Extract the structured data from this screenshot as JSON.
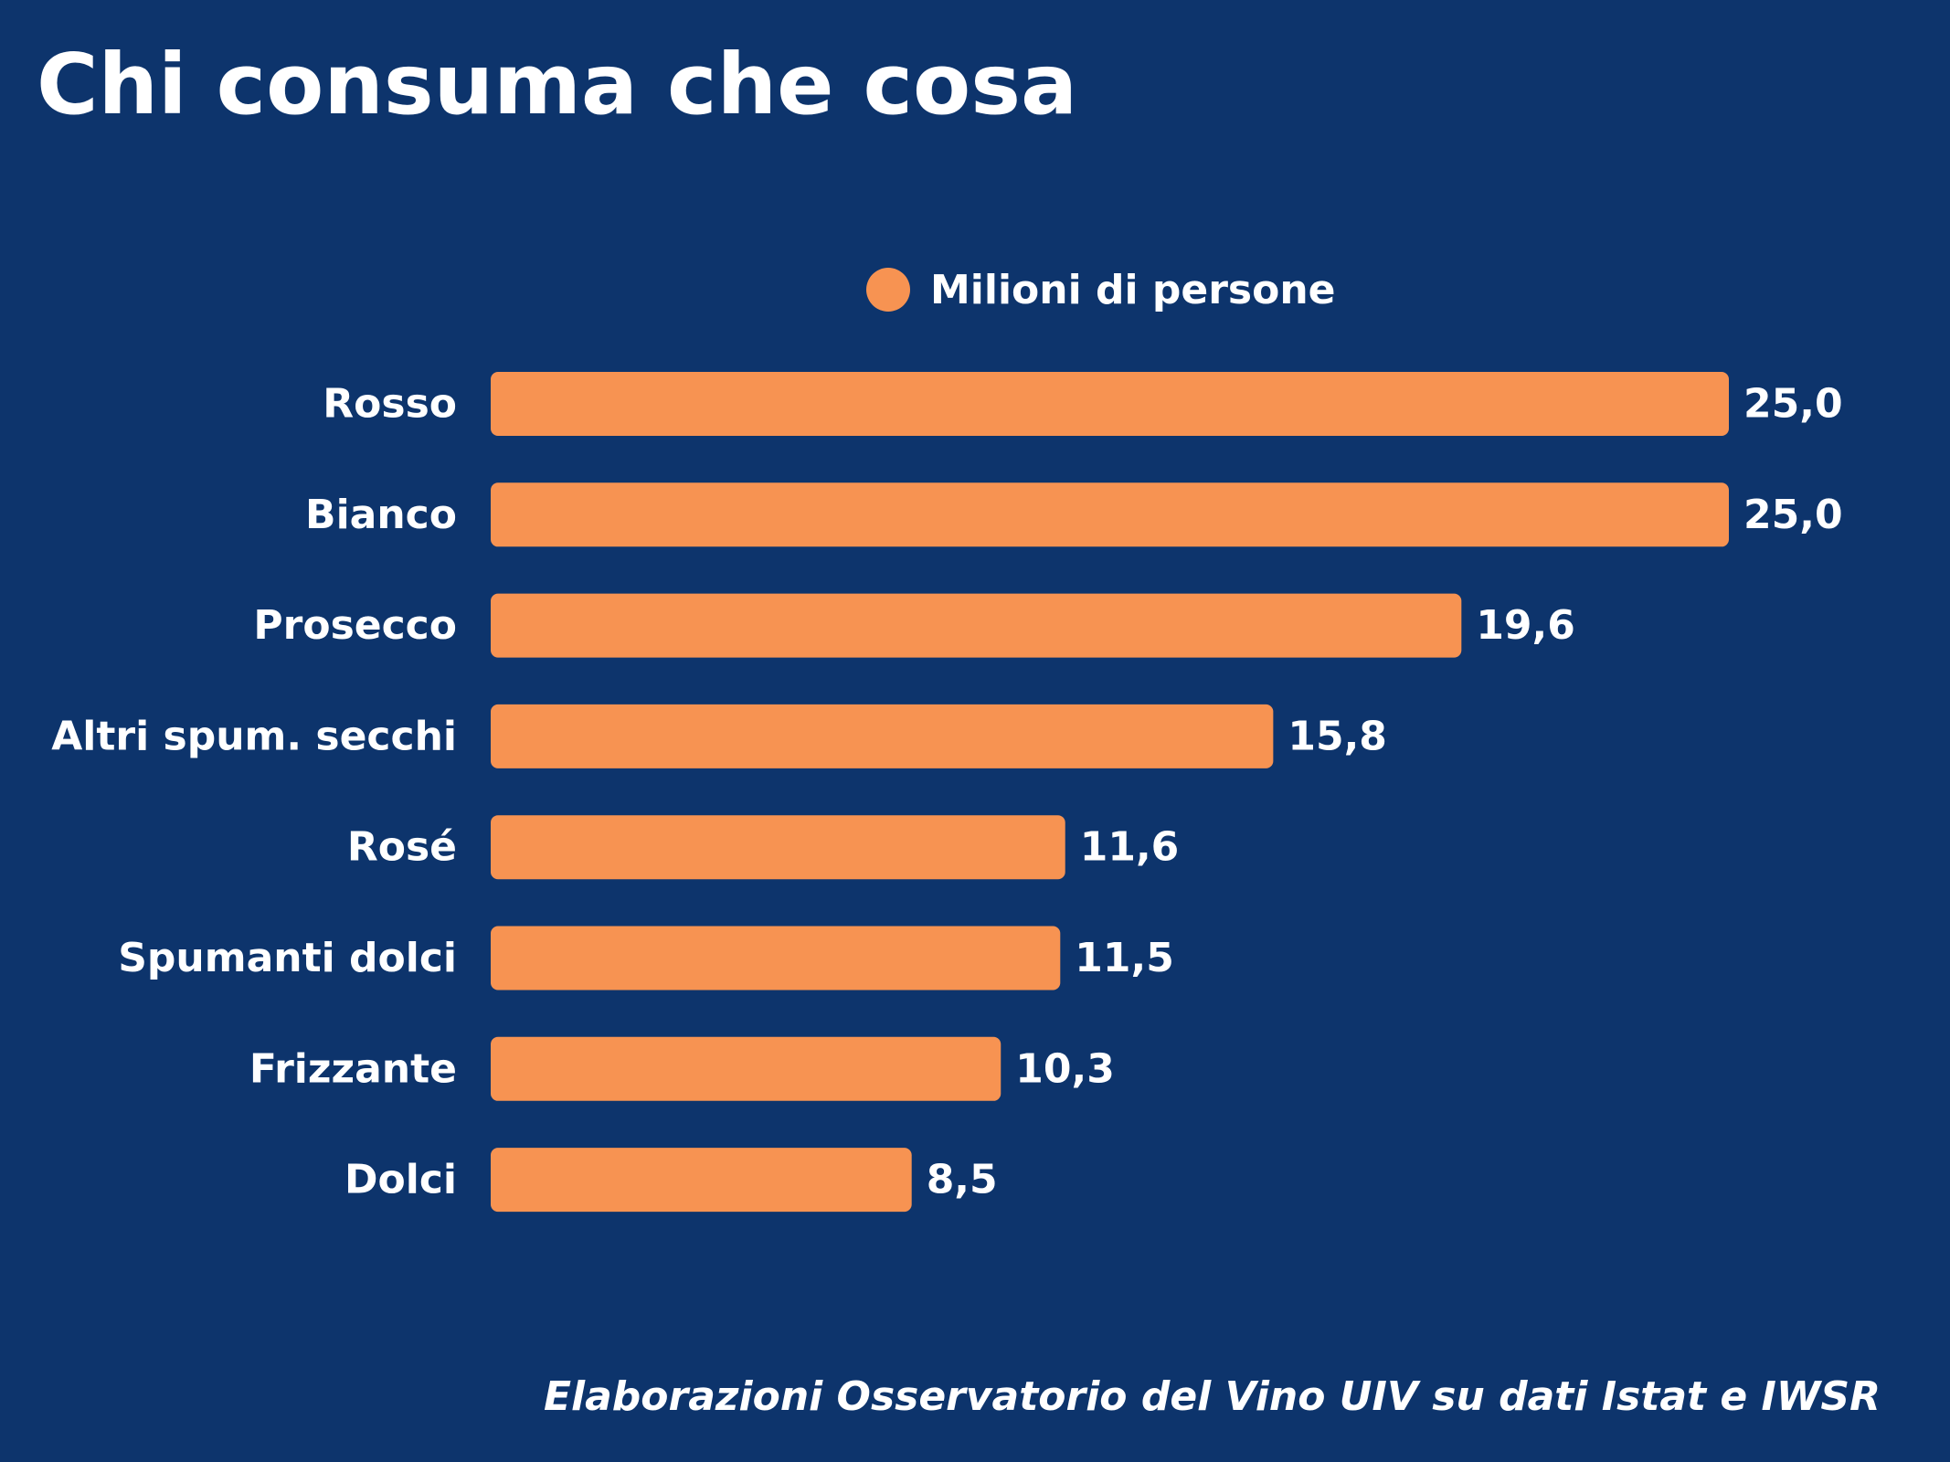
{
  "colors": {
    "background": "#0d346c",
    "bar": "#f79352",
    "text": "#ffffff"
  },
  "chart_data": {
    "type": "bar",
    "orientation": "horizontal",
    "title": "Chi consuma che cosa",
    "categories": [
      "Rosso",
      "Bianco",
      "Prosecco",
      "Altri spum. secchi",
      "Rosé",
      "Spumanti dolci",
      "Frizzante",
      "Dolci"
    ],
    "series": [
      {
        "name": "Milioni di persone",
        "values": [
          25.0,
          25.0,
          19.6,
          15.8,
          11.6,
          11.5,
          10.3,
          8.5
        ],
        "labels": [
          "25,0",
          "25,0",
          "19,6",
          "15,8",
          "11,6",
          "11,5",
          "10,3",
          "8,5"
        ]
      }
    ],
    "xlim": [
      0,
      25
    ],
    "grid": false,
    "legend": "top-center",
    "source": "Elaborazioni Osservatorio del Vino UIV su dati Istat e IWSR"
  }
}
